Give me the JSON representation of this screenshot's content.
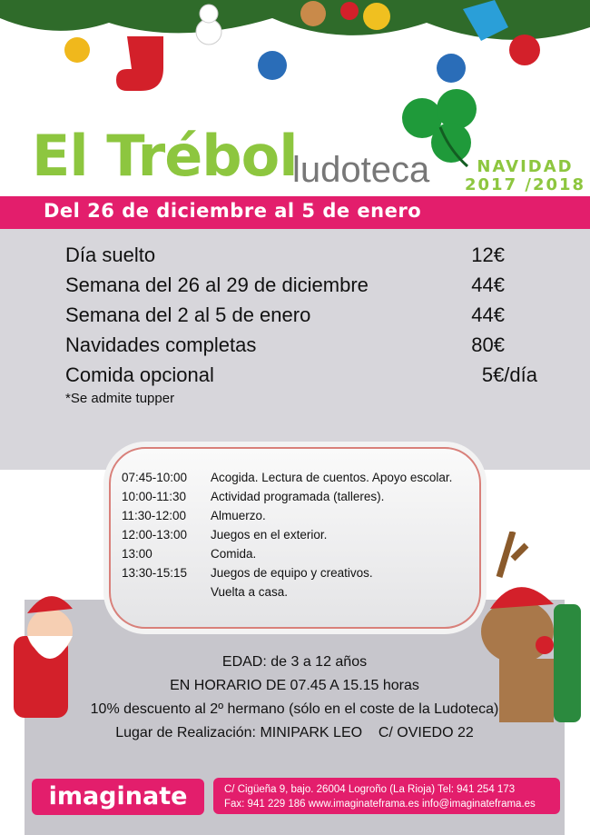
{
  "brand": {
    "title": "El Trébol",
    "subtitle": "ludoteca",
    "season": "NAVIDAD",
    "years": "2017 /2018"
  },
  "banner": "Del 26 de diciembre al 5 de enero",
  "prices": [
    {
      "label": "Día suelto",
      "price": "12€"
    },
    {
      "label": "Semana del 26 al 29 de diciembre",
      "price": "44€"
    },
    {
      "label": "Semana del 2 al 5 de enero",
      "price": "44€"
    },
    {
      "label": "Navidades completas",
      "price": "80€"
    },
    {
      "label": "Comida opcional",
      "price": "5€/día"
    }
  ],
  "note": "*Se admite tupper",
  "schedule": [
    {
      "time": "07:45-10:00",
      "activity": "Acogida. Lectura de cuentos. Apoyo escolar."
    },
    {
      "time": "10:00-11:30",
      "activity": "Actividad programada (talleres)."
    },
    {
      "time": "11:30-12:00",
      "activity": "Almuerzo."
    },
    {
      "time": "12:00-13:00",
      "activity": "Juegos en el exterior."
    },
    {
      "time": "13:00",
      "activity": "Comida."
    },
    {
      "time": "13:30-15:15",
      "activity": "Juegos de equipo y creativos."
    },
    {
      "time": "",
      "activity": "Vuelta a casa."
    }
  ],
  "info": [
    "EDAD: de 3 a 12 años",
    "EN HORARIO DE 07.45 A 15.15 horas",
    "10% descuento al 2º hermano (sólo en el coste de la Ludoteca)",
    "Lugar de Realización: MINIPARK LEO    C/ OVIEDO 22"
  ],
  "footer": {
    "logo": "imaginate",
    "line1": "C/ Cigüeña 9, bajo. 26004 Logroño (La Rioja)  Tel: 941 254 173",
    "line2": "Fax: 941 229 186  www.imaginateframa.es  info@imaginateframa.es"
  },
  "colors": {
    "pink": "#e31e6c",
    "green": "#8dc63f",
    "gray": "#d7d6db"
  }
}
